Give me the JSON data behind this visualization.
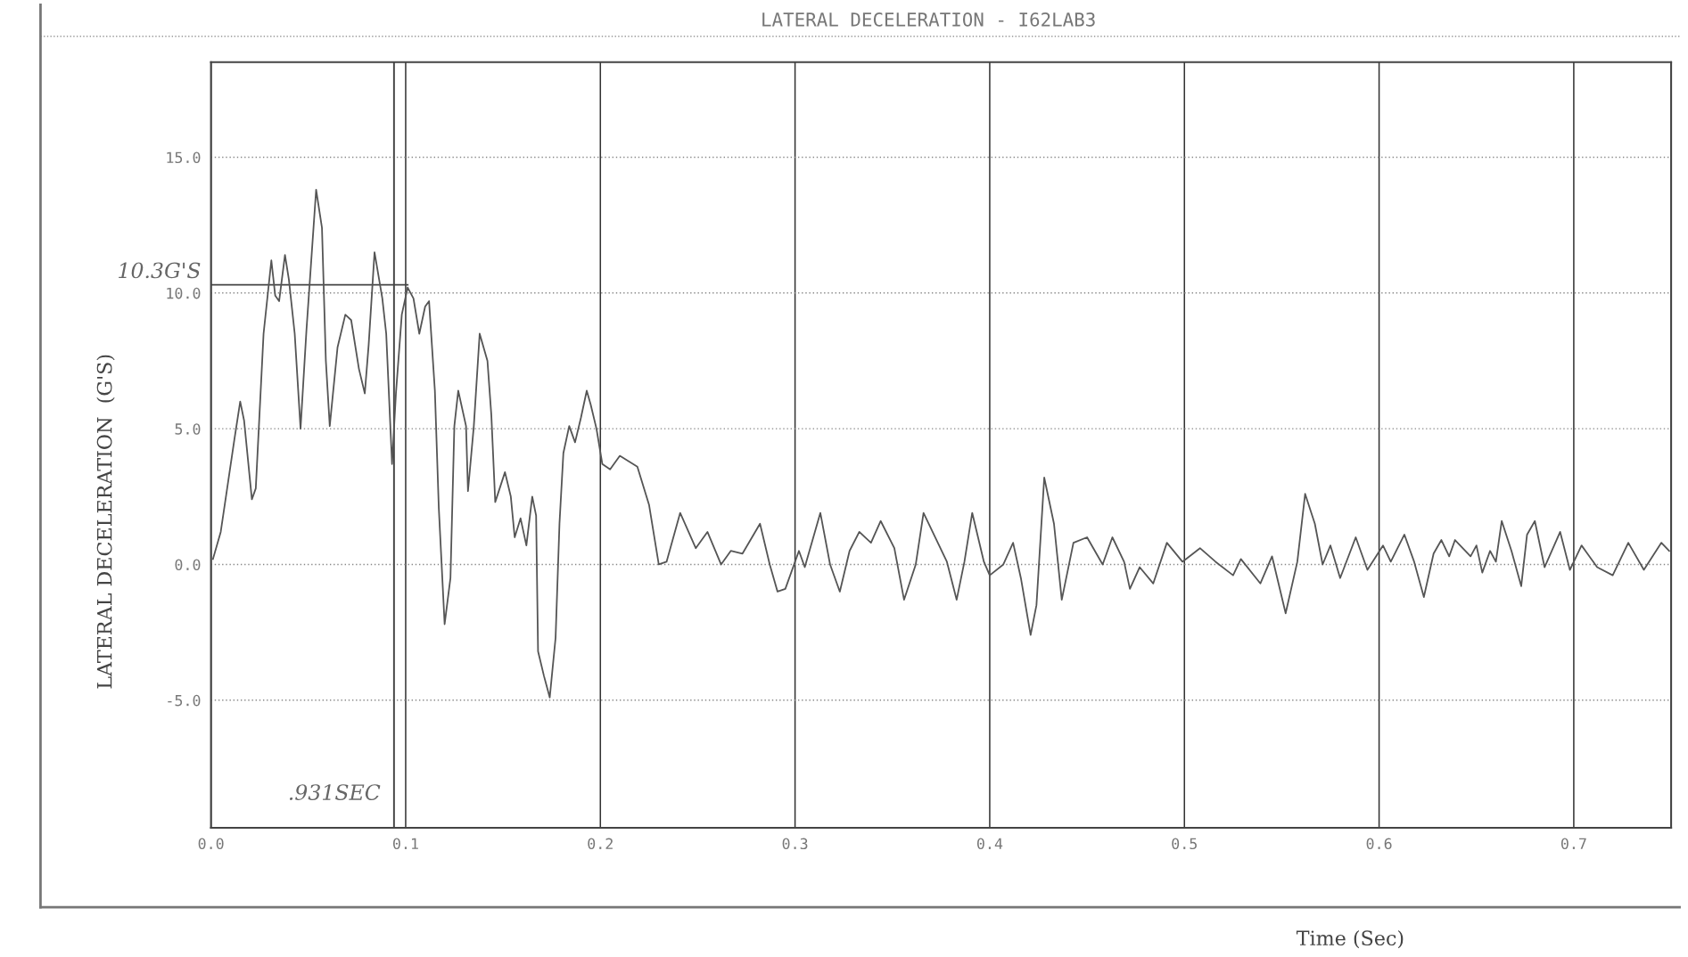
{
  "chart_data": {
    "type": "line",
    "title": "LATERAL DECELERATION - I62LAB3",
    "xlabel": "Time (Sec)",
    "ylabel": "LATERAL DECELERATION  (G'S)",
    "xlim": [
      0,
      0.75
    ],
    "ylim": [
      -9.7,
      18.5
    ],
    "xticks": [
      {
        "value": 0,
        "label": "0.0"
      },
      0.1,
      0.2,
      0.3,
      0.4,
      0.5,
      0.6,
      0.7
    ],
    "yticks": [
      {
        "value": -5,
        "label": "-5.0"
      },
      {
        "value": 0,
        "label": "0.0"
      },
      {
        "value": 5,
        "label": "5.0"
      },
      {
        "value": 10,
        "label": "10.0"
      },
      {
        "value": 15,
        "label": "15.0"
      }
    ],
    "grid": true,
    "marker": "none",
    "line_style": "solid",
    "ref_lines": [
      {
        "axis": "x",
        "value": 0.094,
        "label": ".931SEC",
        "color": "#444444"
      },
      {
        "axis": "y",
        "value": 10.3,
        "label": "10.3G'S",
        "color": "#444444"
      }
    ],
    "series": [
      {
        "color": "#555555",
        "x": [
          0.001,
          0.005,
          0.012,
          0.015,
          0.017,
          0.021,
          0.023,
          0.027,
          0.031,
          0.033,
          0.035,
          0.038,
          0.04,
          0.043,
          0.046,
          0.049,
          0.054,
          0.057,
          0.059,
          0.061,
          0.065,
          0.069,
          0.072,
          0.076,
          0.079,
          0.081,
          0.084,
          0.088,
          0.09,
          0.093,
          0.095,
          0.098,
          0.101,
          0.104,
          0.107,
          0.11,
          0.112,
          0.115,
          0.117,
          0.12,
          0.123,
          0.125,
          0.127,
          0.131,
          0.132,
          0.135,
          0.138,
          0.142,
          0.144,
          0.146,
          0.151,
          0.154,
          0.156,
          0.159,
          0.162,
          0.165,
          0.167,
          0.168,
          0.171,
          0.174,
          0.177,
          0.179,
          0.181,
          0.184,
          0.187,
          0.19,
          0.193,
          0.195,
          0.198,
          0.201,
          0.205,
          0.21,
          0.219,
          0.225,
          0.23,
          0.234,
          0.241,
          0.249,
          0.255,
          0.262,
          0.267,
          0.273,
          0.282,
          0.287,
          0.291,
          0.295,
          0.302,
          0.305,
          0.313,
          0.318,
          0.323,
          0.328,
          0.333,
          0.339,
          0.344,
          0.351,
          0.356,
          0.362,
          0.366,
          0.378,
          0.383,
          0.387,
          0.391,
          0.397,
          0.4,
          0.407,
          0.412,
          0.416,
          0.421,
          0.424,
          0.428,
          0.433,
          0.437,
          0.443,
          0.45,
          0.458,
          0.463,
          0.469,
          0.472,
          0.477,
          0.484,
          0.491,
          0.499,
          0.508,
          0.516,
          0.525,
          0.529,
          0.539,
          0.545,
          0.552,
          0.558,
          0.562,
          0.567,
          0.571,
          0.575,
          0.58,
          0.588,
          0.594,
          0.602,
          0.606,
          0.613,
          0.618,
          0.623,
          0.628,
          0.632,
          0.636,
          0.639,
          0.647,
          0.65,
          0.653,
          0.657,
          0.66,
          0.663,
          0.668,
          0.673,
          0.676,
          0.68,
          0.685,
          0.693,
          0.698,
          0.704,
          0.712,
          0.72,
          0.728,
          0.736,
          0.745,
          0.749
        ],
        "values": [
          0.2,
          1.2,
          4.6,
          6.0,
          5.3,
          2.4,
          2.8,
          8.5,
          11.2,
          9.9,
          9.7,
          11.4,
          10.5,
          8.5,
          5.0,
          8.6,
          13.8,
          12.4,
          7.5,
          5.1,
          8.0,
          9.2,
          9.0,
          7.2,
          6.3,
          8.1,
          11.5,
          9.8,
          8.5,
          3.7,
          6.3,
          9.2,
          10.2,
          9.8,
          8.5,
          9.5,
          9.7,
          6.4,
          2.1,
          -2.2,
          -0.5,
          5.1,
          6.4,
          5.1,
          2.7,
          5.1,
          8.5,
          7.5,
          5.5,
          2.3,
          3.4,
          2.5,
          1.0,
          1.7,
          0.7,
          2.5,
          1.8,
          -3.2,
          -4.1,
          -4.9,
          -2.7,
          1.5,
          4.1,
          5.1,
          4.5,
          5.4,
          6.4,
          5.9,
          5.0,
          3.7,
          3.5,
          4.0,
          3.6,
          2.2,
          0.0,
          0.1,
          1.9,
          0.6,
          1.2,
          0.0,
          0.5,
          0.4,
          1.5,
          0.0,
          -1.0,
          -0.9,
          0.5,
          -0.1,
          1.9,
          0.0,
          -1.0,
          0.5,
          1.2,
          0.8,
          1.6,
          0.6,
          -1.3,
          0.0,
          1.9,
          0.1,
          -1.3,
          0.1,
          1.9,
          0.1,
          -0.4,
          0.0,
          0.8,
          -0.5,
          -2.6,
          -1.5,
          3.2,
          1.5,
          -1.3,
          0.8,
          1.0,
          0.0,
          1.0,
          0.1,
          -0.9,
          -0.1,
          -0.7,
          0.8,
          0.1,
          0.6,
          0.1,
          -0.4,
          0.2,
          -0.7,
          0.3,
          -1.8,
          0.1,
          2.6,
          1.5,
          0.0,
          0.7,
          -0.5,
          1.0,
          -0.2,
          0.7,
          0.1,
          1.1,
          0.1,
          -1.2,
          0.4,
          0.9,
          0.3,
          0.9,
          0.3,
          0.7,
          -0.3,
          0.5,
          0.1,
          1.6,
          0.5,
          -0.8,
          1.1,
          1.6,
          -0.1,
          1.2,
          -0.2,
          0.7,
          -0.1,
          -0.4,
          0.8,
          -0.2,
          0.8,
          0.5
        ]
      }
    ]
  }
}
